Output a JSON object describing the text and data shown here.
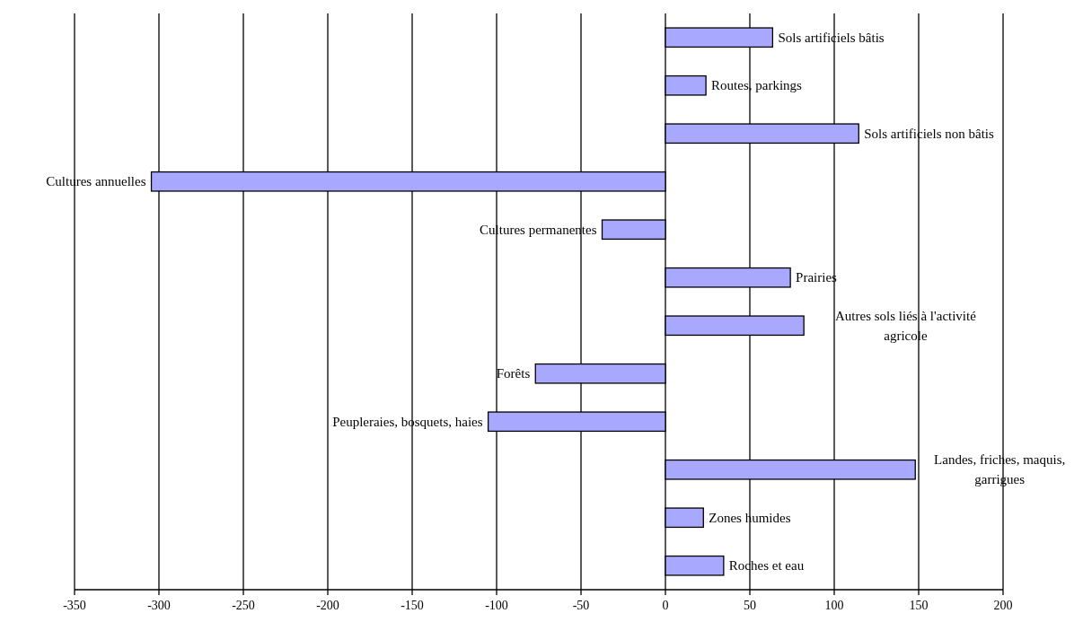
{
  "chart_data": {
    "type": "bar",
    "orientation": "horizontal",
    "color": "#a8a8ff",
    "categories": [
      "Sols artificiels bâtis",
      "Routes, parkings",
      "Sols artificiels non bâtis",
      "Cultures annuelles",
      "Cultures permanentes",
      "Prairies",
      "Autres sols liés à l'activité agricole",
      "Forêts",
      "Peupleraies, bosquets, haies",
      "Landes, friches, maquis, garrigues",
      "Zones humides",
      "Roches et eau"
    ],
    "values": [
      63.5,
      24,
      114.5,
      -304.5,
      -37.5,
      74,
      82,
      -77,
      -105,
      148,
      22.5,
      34.5
    ],
    "xlim": [
      -350,
      200
    ],
    "xticks": [
      -350,
      -300,
      -250,
      -200,
      -150,
      -100,
      -50,
      0,
      50,
      100,
      150,
      200
    ],
    "grid": "x"
  }
}
